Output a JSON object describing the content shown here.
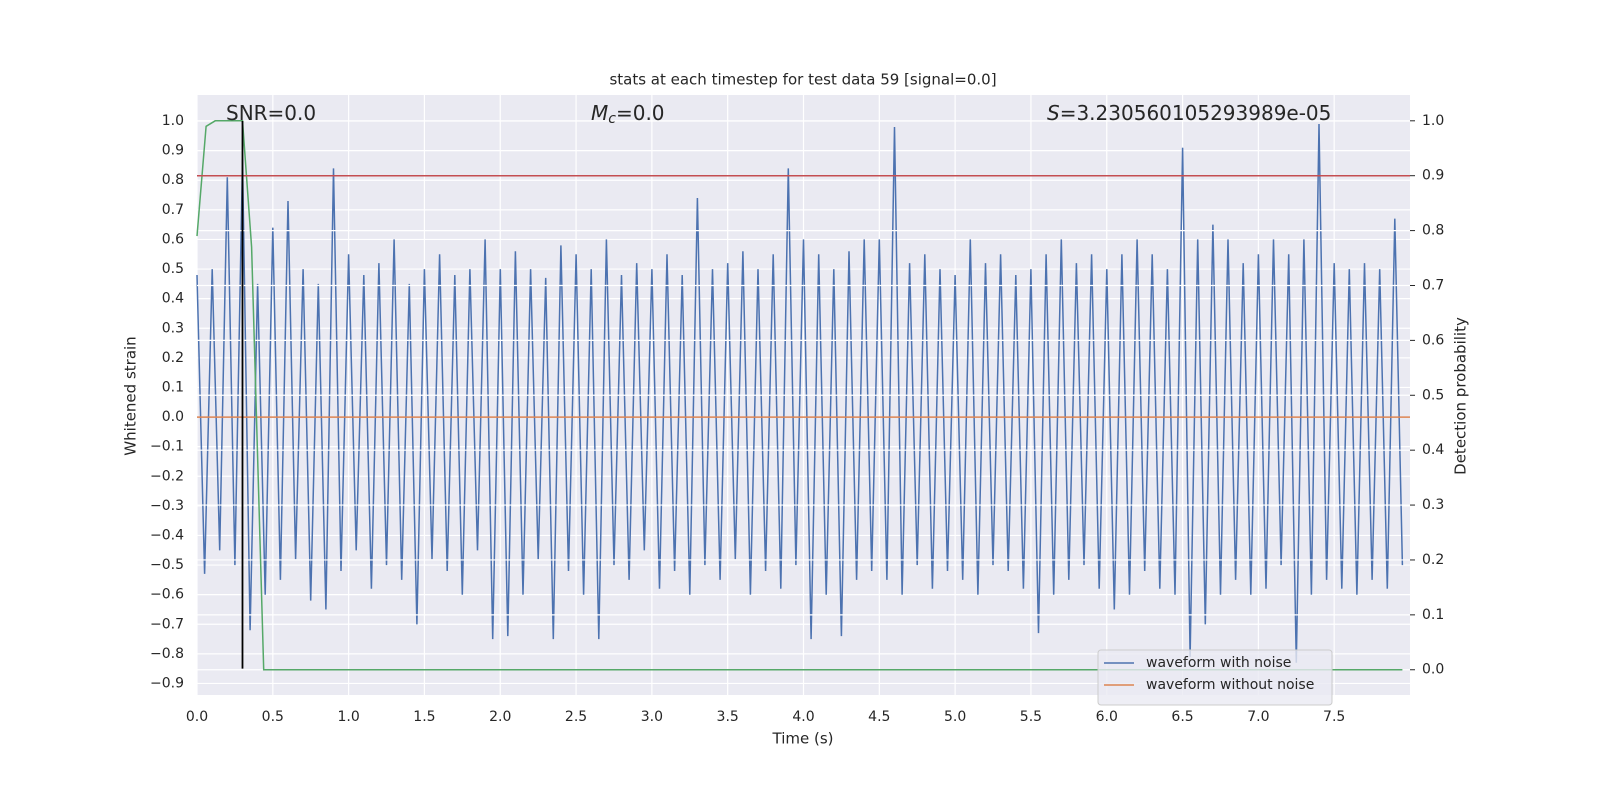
{
  "chart_data": {
    "type": "line",
    "title": "stats at each timestep for test data 59 [signal=0.0]",
    "xlabel": "Time (s)",
    "ylabel": "Whitened strain",
    "y2label": "Detection probability",
    "annotations": [
      {
        "text": "SNR=0.0"
      },
      {
        "italic": "M",
        "sub": "c",
        "text": "=0.0"
      },
      {
        "italic": "S",
        "text": "=3.230560105293989e-05"
      }
    ],
    "xlim": [
      0,
      8.0
    ],
    "xticks": [
      {
        "value": 0,
        "label": "0.0"
      },
      0.5,
      {
        "value": 1,
        "label": "1.0"
      },
      1.5,
      {
        "value": 2,
        "label": "2.0"
      },
      2.5,
      {
        "value": 3,
        "label": "3.0"
      },
      3.5,
      {
        "value": 4,
        "label": "4.0"
      },
      4.5,
      {
        "value": 5,
        "label": "5.0"
      },
      5.5,
      {
        "value": 6,
        "label": "6.0"
      },
      6.5,
      {
        "value": 7,
        "label": "7.0"
      },
      7.5
    ],
    "ylim": [
      -0.939,
      1.088
    ],
    "yticks": [
      {
        "value": -0.9,
        "label": "−0.9"
      },
      {
        "value": -0.8,
        "label": "−0.8"
      },
      {
        "value": -0.7,
        "label": "−0.7"
      },
      {
        "value": -0.6,
        "label": "−0.6"
      },
      {
        "value": -0.5,
        "label": "−0.5"
      },
      {
        "value": -0.4,
        "label": "−0.4"
      },
      {
        "value": -0.3,
        "label": "−0.3"
      },
      {
        "value": -0.2,
        "label": "−0.2"
      },
      {
        "value": -0.1,
        "label": "−0.1"
      },
      {
        "value": 0,
        "label": "0.0"
      },
      0.1,
      0.2,
      0.3,
      0.4,
      0.5,
      0.6,
      0.7,
      0.8,
      0.9,
      {
        "value": 1,
        "label": "1.0"
      }
    ],
    "y2lim": [
      -0.046,
      1.047
    ],
    "y2ticks": [
      {
        "value": 0,
        "label": "0.0"
      },
      0.1,
      0.2,
      0.3,
      0.4,
      0.5,
      0.6,
      0.7,
      0.8,
      0.9,
      {
        "value": 1,
        "label": "1.0"
      }
    ],
    "grid": true,
    "legend": "lower right",
    "series": [
      {
        "name": "waveform with noise",
        "color": "#4c72b0",
        "x": [
          0,
          0.05,
          0.1,
          0.15,
          0.2,
          0.25,
          0.3,
          0.35,
          0.4,
          0.45,
          0.5,
          0.55,
          0.6,
          0.65,
          0.7,
          0.75,
          0.8,
          0.85,
          0.9,
          0.95,
          1.0,
          1.05,
          1.1,
          1.15,
          1.2,
          1.25,
          1.3,
          1.35,
          1.4,
          1.45,
          1.5,
          1.55,
          1.6,
          1.65,
          1.7,
          1.75,
          1.8,
          1.85,
          1.9,
          1.95,
          2.0,
          2.05,
          2.1,
          2.15,
          2.2,
          2.25,
          2.3,
          2.35,
          2.4,
          2.45,
          2.5,
          2.55,
          2.6,
          2.65,
          2.7,
          2.75,
          2.8,
          2.85,
          2.9,
          2.95,
          3.0,
          3.05,
          3.1,
          3.15,
          3.2,
          3.25,
          3.3,
          3.35,
          3.4,
          3.45,
          3.5,
          3.55,
          3.6,
          3.65,
          3.7,
          3.75,
          3.8,
          3.85,
          3.9,
          3.95,
          4.0,
          4.05,
          4.1,
          4.15,
          4.2,
          4.25,
          4.3,
          4.35,
          4.4,
          4.45,
          4.5,
          4.55,
          4.6,
          4.65,
          4.7,
          4.75,
          4.8,
          4.85,
          4.9,
          4.95,
          5.0,
          5.05,
          5.1,
          5.15,
          5.2,
          5.25,
          5.3,
          5.35,
          5.4,
          5.45,
          5.5,
          5.55,
          5.6,
          5.65,
          5.7,
          5.75,
          5.8,
          5.85,
          5.9,
          5.95,
          6.0,
          6.05,
          6.1,
          6.15,
          6.2,
          6.25,
          6.3,
          6.35,
          6.4,
          6.45,
          6.5,
          6.55,
          6.6,
          6.65,
          6.7,
          6.75,
          6.8,
          6.85,
          6.9,
          6.95,
          7.0,
          7.05,
          7.1,
          7.15,
          7.2,
          7.25,
          7.3,
          7.35,
          7.4,
          7.45,
          7.5,
          7.55,
          7.6,
          7.65,
          7.7,
          7.75,
          7.8,
          7.85,
          7.9,
          7.95
        ],
        "values": [
          0.48,
          -0.53,
          0.5,
          -0.45,
          0.81,
          -0.5,
          0.87,
          -0.72,
          0.45,
          -0.6,
          0.64,
          -0.55,
          0.73,
          -0.48,
          0.5,
          -0.62,
          0.45,
          -0.65,
          0.84,
          -0.52,
          0.55,
          -0.45,
          0.48,
          -0.58,
          0.52,
          -0.5,
          0.6,
          -0.55,
          0.45,
          -0.7,
          0.5,
          -0.48,
          0.55,
          -0.52,
          0.48,
          -0.6,
          0.5,
          -0.45,
          0.6,
          -0.75,
          0.5,
          -0.74,
          0.56,
          -0.6,
          0.5,
          -0.48,
          0.47,
          -0.75,
          0.58,
          -0.52,
          0.55,
          -0.6,
          0.5,
          -0.75,
          0.6,
          -0.5,
          0.48,
          -0.55,
          0.52,
          -0.45,
          0.5,
          -0.58,
          0.55,
          -0.52,
          0.48,
          -0.6,
          0.74,
          -0.5,
          0.5,
          -0.55,
          0.52,
          -0.48,
          0.56,
          -0.6,
          0.5,
          -0.52,
          0.55,
          -0.58,
          0.84,
          -0.5,
          0.6,
          -0.75,
          0.55,
          -0.6,
          0.5,
          -0.74,
          0.56,
          -0.55,
          0.6,
          -0.52,
          0.6,
          -0.55,
          0.98,
          -0.6,
          0.52,
          -0.5,
          0.55,
          -0.58,
          0.5,
          -0.52,
          0.48,
          -0.55,
          0.6,
          -0.6,
          0.52,
          -0.5,
          0.55,
          -0.52,
          0.48,
          -0.58,
          0.5,
          -0.73,
          0.55,
          -0.6,
          0.6,
          -0.55,
          0.52,
          -0.5,
          0.55,
          -0.58,
          0.5,
          -0.65,
          0.55,
          -0.6,
          0.6,
          -0.52,
          0.55,
          -0.58,
          0.5,
          -0.6,
          0.91,
          -0.81,
          0.6,
          -0.7,
          0.65,
          -0.6,
          0.6,
          -0.55,
          0.52,
          -0.6,
          0.55,
          -0.58,
          0.6,
          -0.5,
          0.55,
          -0.83,
          0.6,
          -0.6,
          0.99,
          -0.55,
          0.52,
          -0.58,
          0.5,
          -0.6,
          0.52,
          -0.55,
          0.5,
          -0.58,
          0.67,
          -0.5
        ]
      },
      {
        "name": "waveform without noise",
        "color": "#dd8452",
        "x": [
          0,
          8.0
        ],
        "values": [
          0,
          0
        ]
      },
      {
        "color": "#55a868",
        "axis": "y2",
        "x": [
          0,
          0.06,
          0.12,
          0.3,
          0.36,
          0.44,
          7.95
        ],
        "values": [
          0.79,
          0.99,
          1.0,
          1.0,
          0.77,
          0.0,
          0.0
        ]
      }
    ],
    "hline": {
      "y": 0.9,
      "axis": "y2",
      "color": "#c44e52"
    },
    "vline": {
      "x": 0.3,
      "ymin": -0.85,
      "ymax": 1.0,
      "color": "#000000"
    }
  }
}
